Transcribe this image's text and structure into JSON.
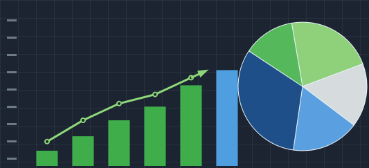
{
  "chart_data": [
    {
      "type": "bar",
      "categories": [
        null,
        null,
        null,
        null,
        null,
        null
      ],
      "values": [
        10,
        19.5,
        30,
        39,
        53,
        63
      ],
      "colors": [
        "#3fae4a",
        "#3fae4a",
        "#3fae4a",
        "#3fae4a",
        "#3fae4a",
        "#4f9fe0"
      ],
      "line": {
        "color": "#8fd87a",
        "values": [
          16,
          30,
          41,
          47,
          58,
          null
        ]
      },
      "ylim": [
        0,
        100
      ],
      "grid": true
    },
    {
      "type": "pie",
      "values": [
        22,
        16,
        17,
        32,
        13
      ],
      "colors": [
        "#8fd07a",
        "#d6dbde",
        "#5aa0e0",
        "#1f4f88",
        "#55b85a"
      ]
    }
  ]
}
